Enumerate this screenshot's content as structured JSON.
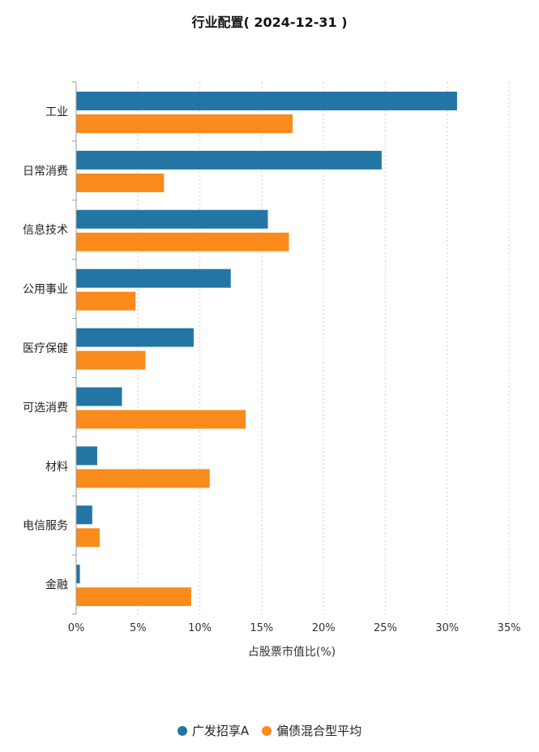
{
  "chart_data": {
    "type": "bar",
    "orientation": "horizontal",
    "title": "行业配置( 2024-12-31 )",
    "xlabel": "占股票市值比(%)",
    "xlim": [
      0,
      35
    ],
    "xticks": [
      "0%",
      "5%",
      "10%",
      "15%",
      "20%",
      "25%",
      "30%",
      "35%"
    ],
    "grid": "vertical-dotted",
    "legend_position": "bottom",
    "categories": [
      "工业",
      "日常消费",
      "信息技术",
      "公用事业",
      "医疗保健",
      "可选消费",
      "材料",
      "电信服务",
      "金融"
    ],
    "series": [
      {
        "name": "广发招享A",
        "color": "#2376a4",
        "values": [
          30.8,
          24.7,
          15.5,
          12.5,
          9.5,
          3.7,
          1.7,
          1.3,
          0.3
        ]
      },
      {
        "name": "偏债混合型平均",
        "color": "#f98b1c",
        "values": [
          17.5,
          7.1,
          17.2,
          4.8,
          5.6,
          13.7,
          10.8,
          1.9,
          9.3
        ]
      }
    ]
  }
}
